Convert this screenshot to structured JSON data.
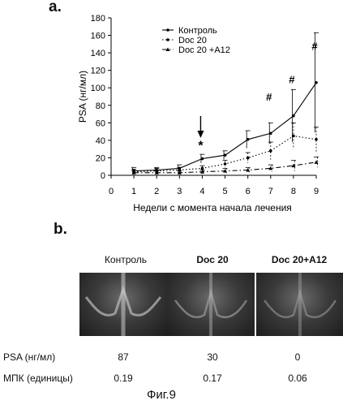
{
  "panel_a_label": "a.",
  "panel_b_label": "b.",
  "figure_caption": "Фиг.9",
  "chart_data": {
    "type": "line",
    "xlabel": "Недели с момента начала лечения",
    "ylabel": "PSA (нг/мл)",
    "xlim": [
      0,
      9
    ],
    "ylim": [
      0,
      180
    ],
    "x_ticks": [
      0,
      1,
      2,
      3,
      4,
      5,
      6,
      7,
      8,
      9
    ],
    "y_ticks": [
      0,
      20,
      40,
      60,
      80,
      100,
      120,
      140,
      160,
      180
    ],
    "legend_position": "top",
    "series": [
      {
        "name": "Контроль",
        "style": "solid",
        "marker": "dot",
        "x": [
          1,
          2,
          3,
          4,
          5,
          6,
          7,
          8,
          9
        ],
        "y": [
          5,
          6,
          8,
          19,
          23,
          41,
          48,
          68,
          106
        ],
        "err": [
          4,
          3,
          4,
          5,
          5,
          10,
          12,
          30,
          57
        ]
      },
      {
        "name": "Doc 20",
        "style": "dotted",
        "marker": "dot",
        "x": [
          1,
          2,
          3,
          4,
          5,
          6,
          7,
          8,
          9
        ],
        "y": [
          4,
          5,
          6,
          8,
          13,
          20,
          28,
          45,
          41
        ],
        "err": [
          3,
          3,
          3,
          3,
          4,
          6,
          10,
          15,
          14
        ]
      },
      {
        "name": "Doc 20 +A12",
        "style": "dashdot",
        "marker": "triangle",
        "x": [
          1,
          2,
          3,
          4,
          5,
          6,
          7,
          8,
          9
        ],
        "y": [
          3,
          3,
          3,
          4,
          5,
          6,
          8,
          11,
          15
        ],
        "err": [
          2,
          2,
          2,
          2,
          3,
          3,
          4,
          6,
          6
        ]
      }
    ],
    "annotations": [
      {
        "text": "#",
        "x": 7,
        "y": 48
      },
      {
        "text": "#",
        "x": 8,
        "y": 68
      },
      {
        "text": "#",
        "x": 9,
        "y": 106
      },
      {
        "text": "*",
        "x": 4,
        "y": 19
      }
    ],
    "arrow_at_week": 4
  },
  "panel_b": {
    "columns": [
      "Контроль",
      "Doc 20",
      "Doc 20+A12"
    ],
    "row_labels": {
      "psa": "PSA (нг/мл)",
      "bmd": "МПК (единицы)"
    },
    "psa_values": [
      "87",
      "30",
      "0"
    ],
    "bmd_values": [
      "0.19",
      "0.17",
      "0.06"
    ]
  }
}
